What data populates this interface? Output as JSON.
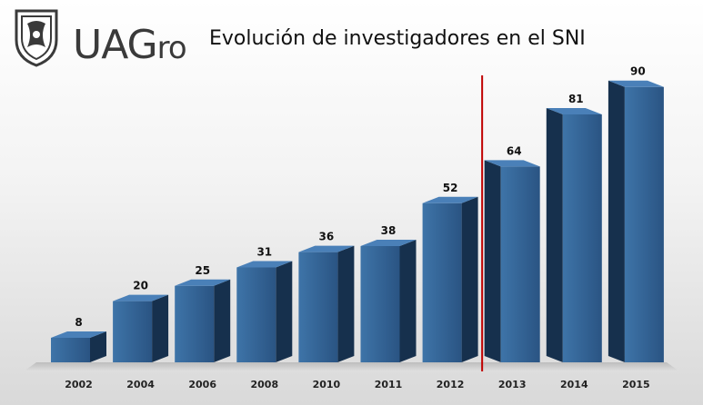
{
  "logo": {
    "main": "UAG",
    "suffix": "ro"
  },
  "chart_data": {
    "type": "bar",
    "title": "Evolución de investigadores en el SNI",
    "categories": [
      "2002",
      "2004",
      "2006",
      "2008",
      "2010",
      "2011",
      "2012",
      "2013",
      "2014",
      "2015"
    ],
    "values": [
      8,
      20,
      25,
      31,
      36,
      38,
      52,
      64,
      81,
      90
    ],
    "data_labels": [
      "8",
      "20",
      "25",
      "31",
      "36",
      "38",
      "52",
      "64",
      "81",
      "90"
    ],
    "ylim": [
      0,
      100
    ],
    "xlabel": "",
    "ylabel": "",
    "grid": false,
    "legend": "none",
    "divider_between": [
      "2012",
      "2013"
    ],
    "colors": {
      "bar_front": "#2f5d8c",
      "bar_front_light": "#3e74a8",
      "bar_side": "#16304d",
      "bar_top": "#4a80b8",
      "divider": "#c00000",
      "floor": "#c8c8c8"
    }
  }
}
